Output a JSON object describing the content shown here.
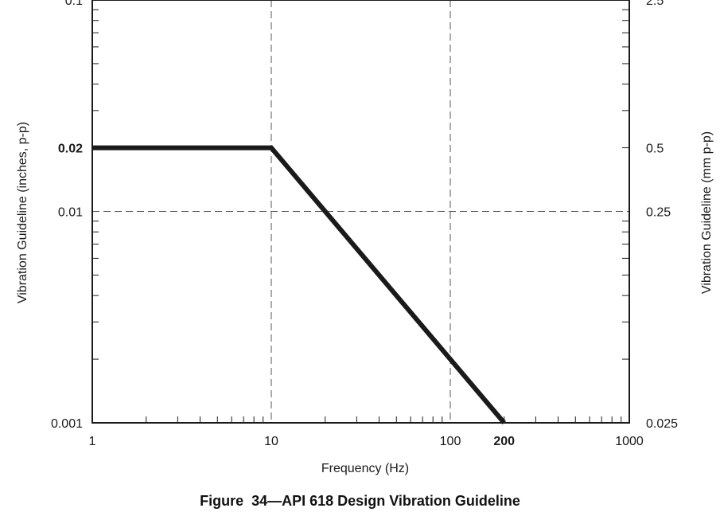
{
  "caption": "Figure  34—API 618 Design Vibration Guideline",
  "chart_data": {
    "type": "line",
    "title": "",
    "xlabel": "Frequency (Hz)",
    "ylabel": "Vibration Guideline (inches, p-p)",
    "ylabel_right": "Vibration Guideline (mm p-p)",
    "x_scale": "log",
    "y_scale": "log",
    "xlim": [
      1,
      1000
    ],
    "ylim": [
      0.001,
      0.1
    ],
    "ylim_right": [
      0.025,
      2.5
    ],
    "grid": "dashed at 10, 100 Hz and 0.01 in",
    "x_ticks": [
      {
        "value": 1,
        "label": "1",
        "bold": false
      },
      {
        "value": 10,
        "label": "10",
        "bold": false
      },
      {
        "value": 100,
        "label": "100",
        "bold": false
      },
      {
        "value": 200,
        "label": "200",
        "bold": true
      },
      {
        "value": 1000,
        "label": "1000",
        "bold": false
      }
    ],
    "y_ticks_left": [
      {
        "value": 0.001,
        "label": "0.001",
        "bold": false
      },
      {
        "value": 0.01,
        "label": "0.01",
        "bold": false
      },
      {
        "value": 0.02,
        "label": "0.02",
        "bold": true
      },
      {
        "value": 0.1,
        "label": "0.1",
        "bold": false
      }
    ],
    "y_ticks_right": [
      {
        "value": 0.025,
        "label": "0.025"
      },
      {
        "value": 0.25,
        "label": "0.25"
      },
      {
        "value": 0.5,
        "label": "0.5"
      },
      {
        "value": 2.5,
        "label": "2.5"
      }
    ],
    "series": [
      {
        "x": [
          1,
          10,
          200
        ],
        "y": [
          0.02,
          0.02,
          0.001
        ],
        "color": "#1a1a1a"
      }
    ]
  }
}
